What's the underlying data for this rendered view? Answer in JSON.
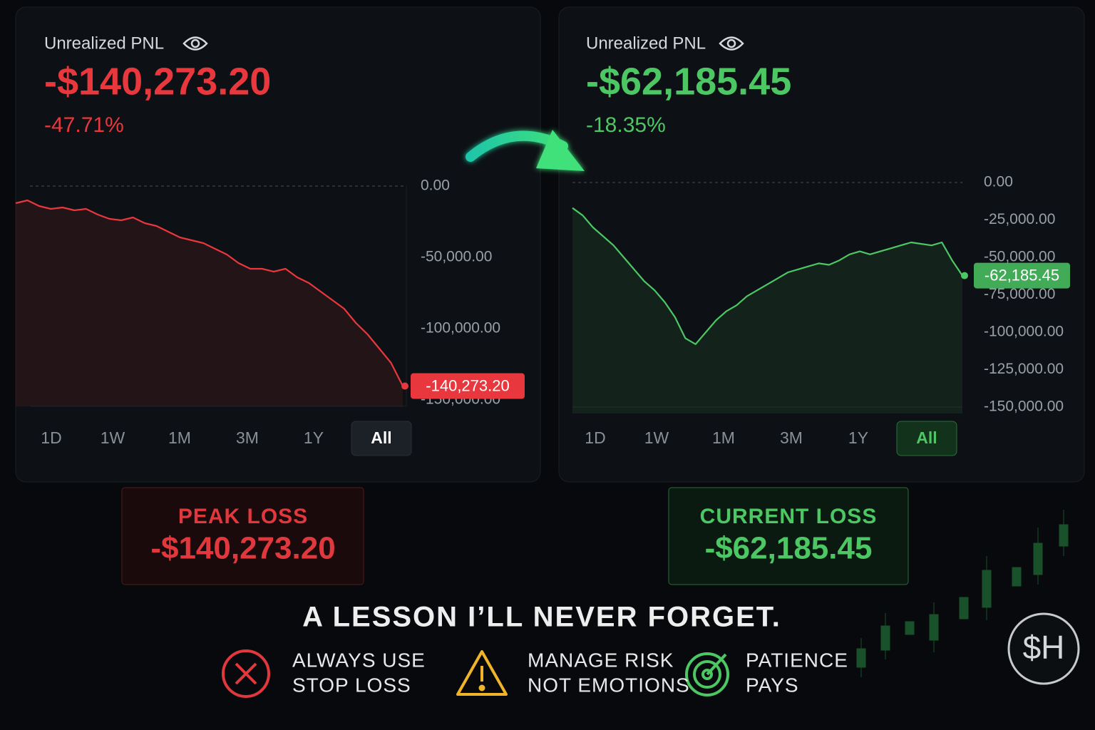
{
  "panels": [
    {
      "label": "Unrealized PNL",
      "value": "-$140,273.20",
      "percent": "-47.71%",
      "color": "#e8383d",
      "chart": {
        "type": "line",
        "ylim": [
          -150000,
          0
        ],
        "yticks": [
          {
            "value": 0,
            "label": "0.00"
          },
          {
            "value": -50000,
            "label": "-50,000.00"
          },
          {
            "value": -100000,
            "label": "-100,000.00"
          },
          {
            "value": -150000,
            "label": "-150,000.00"
          }
        ],
        "values": [
          -12000,
          -10000,
          -14000,
          -16000,
          -15000,
          -17000,
          -16000,
          -20000,
          -23000,
          -24000,
          -22000,
          -26000,
          -28000,
          -32000,
          -36000,
          -38000,
          -40000,
          -44000,
          -48000,
          -54000,
          -58000,
          -58000,
          -60000,
          -58000,
          -64000,
          -68000,
          -74000,
          -80000,
          -86000,
          -96000,
          -104000,
          -114000,
          -124000,
          -140273.2
        ],
        "value_labels": [
          null,
          null,
          null,
          null,
          null,
          null,
          null,
          null,
          null,
          null,
          null,
          null,
          null,
          null,
          null,
          null,
          null,
          null,
          null,
          null,
          null,
          null,
          null,
          null,
          null,
          null,
          null,
          null,
          null,
          null,
          null,
          null,
          null,
          "-140,273.20"
        ]
      },
      "timeframes": [
        "1D",
        "1W",
        "1M",
        "3M",
        "1Y",
        "All"
      ],
      "active_timeframe": 5
    },
    {
      "label": "Unrealized PNL",
      "value": "-$62,185.45",
      "percent": "-18.35%",
      "color": "#4cc764",
      "chart": {
        "type": "line",
        "ylim": [
          -150000,
          0
        ],
        "yticks": [
          {
            "value": 0,
            "label": "0.00"
          },
          {
            "value": -25000,
            "label": "-25,000.00"
          },
          {
            "value": -50000,
            "label": "-50,000.00"
          },
          {
            "value": -75000,
            "label": "-75,000.00"
          },
          {
            "value": -100000,
            "label": "-100,000.00"
          },
          {
            "value": -125000,
            "label": "-125,000.00"
          },
          {
            "value": -150000,
            "label": "-150,000.00"
          }
        ],
        "values": [
          -17000,
          -22000,
          -30000,
          -36000,
          -42000,
          -50000,
          -58000,
          -66000,
          -72000,
          -80000,
          -90000,
          -104000,
          -108000,
          -100000,
          -92000,
          -86000,
          -82000,
          -76000,
          -72000,
          -68000,
          -64000,
          -60000,
          -58000,
          -56000,
          -54000,
          -55000,
          -52000,
          -48000,
          -46000,
          -48000,
          -46000,
          -44000,
          -42000,
          -40000,
          -41000,
          -42000,
          -40000,
          -52000,
          -62185.45
        ],
        "value_labels": [
          null,
          null,
          null,
          null,
          null,
          null,
          null,
          null,
          null,
          null,
          null,
          null,
          null,
          null,
          null,
          null,
          null,
          null,
          null,
          null,
          null,
          null,
          null,
          null,
          null,
          null,
          null,
          null,
          null,
          null,
          null,
          null,
          null,
          null,
          null,
          null,
          null,
          null,
          "-62,185.45"
        ]
      },
      "timeframes": [
        "1D",
        "1W",
        "1M",
        "3M",
        "1Y",
        "All"
      ],
      "active_timeframe": 5
    }
  ],
  "summary": [
    {
      "title": "PEAK LOSS",
      "value": "-$140,273.20"
    },
    {
      "title": "CURRENT LOSS",
      "value": "-$62,185.45"
    }
  ],
  "headline": "A LESSON I’LL NEVER FORGET.",
  "tips": [
    {
      "lines": [
        "ALWAYS USE",
        "STOP LOSS"
      ]
    },
    {
      "lines": [
        "MANAGE RISK",
        "NOT EMOTIONS"
      ]
    },
    {
      "lines": [
        "PATIENCE",
        "PAYS"
      ]
    }
  ],
  "logo": "$H"
}
